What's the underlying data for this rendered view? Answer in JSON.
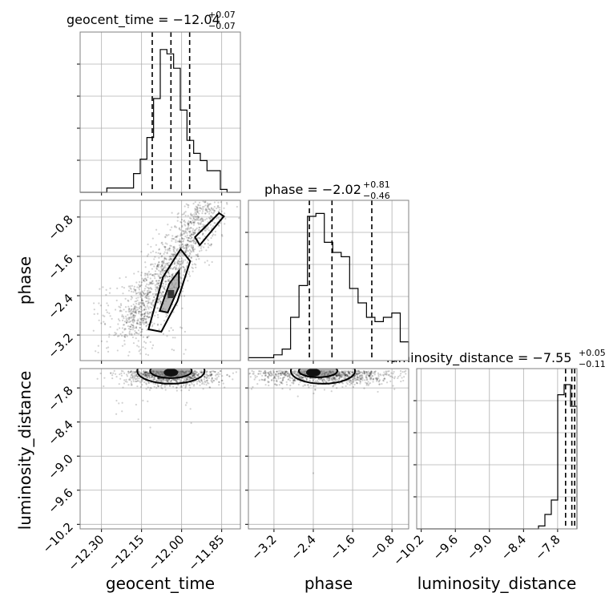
{
  "chart_data": {
    "type": "corner",
    "parameters": [
      "geocent_time",
      "phase",
      "luminosity_distance"
    ],
    "titles": {
      "geocent_time": {
        "name": "geocent_time",
        "median": "−12.04",
        "plus": "+0.07",
        "minus": "−0.07"
      },
      "phase": {
        "name": "phase",
        "median": "−2.02",
        "plus": "+0.81",
        "minus": "−0.46"
      },
      "luminosity_distance": {
        "name": "luminosity_distance",
        "median": "−7.55",
        "plus": "+0.05",
        "minus": "−0.11"
      }
    },
    "ranges": {
      "geocent_time": [
        -12.38,
        -11.78
      ],
      "phase": [
        -3.72,
        -0.46
      ],
      "luminosity_distance": [
        -10.28,
        -7.46
      ]
    },
    "ticks": {
      "geocent_time": {
        "values": [
          -12.3,
          -12.15,
          -12.0,
          -11.85
        ],
        "labels": [
          "−12.30",
          "−12.15",
          "−12.00",
          "−11.85"
        ]
      },
      "phase": {
        "values": [
          -3.2,
          -2.4,
          -1.6,
          -0.8
        ],
        "labels": [
          "−3.2",
          "−2.4",
          "−1.6",
          "−0.8"
        ]
      },
      "luminosity_distance": {
        "values": [
          -10.2,
          -9.6,
          -9.0,
          -8.4,
          -7.8
        ],
        "labels": [
          "−10.2",
          "−9.6",
          "−9.0",
          "−8.4",
          "−7.8"
        ]
      }
    },
    "quantiles": {
      "geocent_time": [
        -12.11,
        -12.04,
        -11.97
      ],
      "phase": [
        -2.48,
        -2.02,
        -1.21
      ],
      "luminosity_distance": [
        -7.66,
        -7.55,
        -7.5
      ]
    },
    "histograms": {
      "geocent_time": [
        0,
        0,
        0,
        0,
        0.03,
        0.03,
        0.03,
        0.03,
        0.13,
        0.23,
        0.38,
        0.65,
        0.99,
        0.96,
        0.86,
        0.57,
        0.36,
        0.27,
        0.22,
        0.15,
        0.15,
        0.02,
        0,
        0
      ],
      "phase": [
        0.02,
        0.02,
        0.02,
        0.04,
        0.08,
        0.3,
        0.52,
        1.0,
        1.02,
        0.82,
        0.75,
        0.72,
        0.5,
        0.4,
        0.3,
        0.27,
        0.3,
        0.33,
        0.13
      ],
      "luminosity_distance": [
        0,
        0,
        0,
        0,
        0,
        0,
        0,
        0,
        0,
        0,
        0,
        0,
        0,
        0,
        0,
        0,
        0,
        0,
        0,
        0.02,
        0.1,
        0.2,
        0.93,
        1.0,
        0.85
      ]
    },
    "grid": true,
    "density_cores": {
      "phase_vs_geocent_time": [
        -12.04,
        -2.35
      ],
      "luminosity_distance_vs_geocent_time": [
        -12.04,
        -7.5
      ],
      "luminosity_distance_vs_phase": [
        -2.4,
        -7.5
      ]
    }
  }
}
